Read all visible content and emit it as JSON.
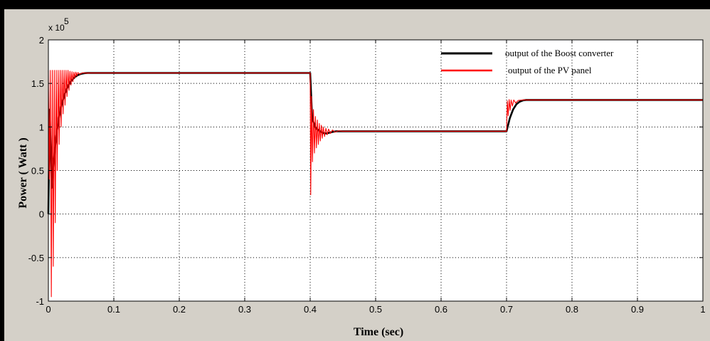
{
  "chart_data": {
    "type": "line",
    "title": "",
    "xlabel": "Time (sec)",
    "ylabel": "Power ( Watt )",
    "xlim": [
      0,
      1
    ],
    "ylim": [
      -100000,
      200000
    ],
    "y_exponent_label": "x 10",
    "y_exponent_power": "5",
    "xticks": [
      0,
      0.1,
      0.2,
      0.3,
      0.4,
      0.5,
      0.6,
      0.7,
      0.8,
      0.9,
      1
    ],
    "xtick_labels": [
      "0",
      "0.1",
      "0.2",
      "0.3",
      "0.4",
      "0.5",
      "0.6",
      "0.7",
      "0.8",
      "0.9",
      "1"
    ],
    "yticks": [
      -100000,
      -50000,
      0,
      50000,
      100000,
      150000,
      200000
    ],
    "ytick_labels": [
      "-1",
      "-0.5",
      "0",
      "0.5",
      "1",
      "1.5",
      "2"
    ],
    "grid": true,
    "legend_position": "top-right",
    "series": [
      {
        "name": "output of the Boost converter",
        "color": "#000000",
        "points": [
          [
            0,
            0
          ],
          [
            0.002,
            120000
          ],
          [
            0.005,
            30000
          ],
          [
            0.008,
            60000
          ],
          [
            0.012,
            90000
          ],
          [
            0.016,
            110000
          ],
          [
            0.02,
            125000
          ],
          [
            0.025,
            138000
          ],
          [
            0.03,
            147000
          ],
          [
            0.035,
            153000
          ],
          [
            0.04,
            157000
          ],
          [
            0.045,
            159500
          ],
          [
            0.05,
            161000
          ],
          [
            0.055,
            161700
          ],
          [
            0.06,
            162000
          ],
          [
            0.2,
            162000
          ],
          [
            0.3,
            162000
          ],
          [
            0.398,
            162000
          ],
          [
            0.4,
            162000
          ],
          [
            0.403,
            110000
          ],
          [
            0.408,
            99000
          ],
          [
            0.415,
            95000
          ],
          [
            0.42,
            93000
          ],
          [
            0.425,
            92500
          ],
          [
            0.43,
            93500
          ],
          [
            0.435,
            94500
          ],
          [
            0.44,
            95000
          ],
          [
            0.5,
            95000
          ],
          [
            0.6,
            95000
          ],
          [
            0.698,
            95000
          ],
          [
            0.7,
            95000
          ],
          [
            0.705,
            110000
          ],
          [
            0.71,
            120000
          ],
          [
            0.715,
            126000
          ],
          [
            0.72,
            129000
          ],
          [
            0.725,
            130500
          ],
          [
            0.73,
            131000
          ],
          [
            0.8,
            131000
          ],
          [
            0.9,
            131000
          ],
          [
            1.0,
            131000
          ]
        ]
      },
      {
        "name": "output of the PV panel",
        "color": "#ff0000",
        "points": [
          [
            0,
            165000
          ],
          [
            0.0015,
            40000
          ],
          [
            0.003,
            165000
          ],
          [
            0.0045,
            -95000
          ],
          [
            0.006,
            165000
          ],
          [
            0.0075,
            -60000
          ],
          [
            0.009,
            165000
          ],
          [
            0.0105,
            -10000
          ],
          [
            0.012,
            165000
          ],
          [
            0.0135,
            50000
          ],
          [
            0.015,
            165000
          ],
          [
            0.0165,
            80000
          ],
          [
            0.018,
            165000
          ],
          [
            0.0195,
            100000
          ],
          [
            0.021,
            165000
          ],
          [
            0.0225,
            115000
          ],
          [
            0.024,
            165000
          ],
          [
            0.0255,
            125000
          ],
          [
            0.027,
            165000
          ],
          [
            0.0285,
            135000
          ],
          [
            0.03,
            165000
          ],
          [
            0.0315,
            142000
          ],
          [
            0.033,
            164000
          ],
          [
            0.0345,
            148000
          ],
          [
            0.036,
            163500
          ],
          [
            0.0375,
            152000
          ],
          [
            0.039,
            163000
          ],
          [
            0.0405,
            156000
          ],
          [
            0.042,
            163000
          ],
          [
            0.0435,
            158500
          ],
          [
            0.045,
            162500
          ],
          [
            0.048,
            160500
          ],
          [
            0.052,
            162200
          ],
          [
            0.058,
            161800
          ],
          [
            0.065,
            162000
          ],
          [
            0.2,
            162000
          ],
          [
            0.3,
            162000
          ],
          [
            0.399,
            162000
          ],
          [
            0.4,
            162000
          ],
          [
            0.4008,
            22000
          ],
          [
            0.402,
            135000
          ],
          [
            0.4035,
            60000
          ],
          [
            0.405,
            120000
          ],
          [
            0.4065,
            70000
          ],
          [
            0.408,
            112000
          ],
          [
            0.4095,
            76000
          ],
          [
            0.411,
            108000
          ],
          [
            0.4125,
            80000
          ],
          [
            0.414,
            104000
          ],
          [
            0.4155,
            84000
          ],
          [
            0.417,
            102000
          ],
          [
            0.4185,
            87000
          ],
          [
            0.42,
            100000
          ],
          [
            0.422,
            89000
          ],
          [
            0.424,
            98500
          ],
          [
            0.426,
            91000
          ],
          [
            0.428,
            97500
          ],
          [
            0.431,
            92500
          ],
          [
            0.434,
            96500
          ],
          [
            0.438,
            94000
          ],
          [
            0.443,
            95500
          ],
          [
            0.45,
            95000
          ],
          [
            0.6,
            95000
          ],
          [
            0.698,
            95000
          ],
          [
            0.7,
            95000
          ],
          [
            0.7012,
            130000
          ],
          [
            0.7025,
            113000
          ],
          [
            0.704,
            131500
          ],
          [
            0.7055,
            119000
          ],
          [
            0.707,
            131000
          ],
          [
            0.709,
            124000
          ],
          [
            0.711,
            131000
          ],
          [
            0.714,
            127500
          ],
          [
            0.718,
            130500
          ],
          [
            0.725,
            131000
          ],
          [
            0.8,
            131000
          ],
          [
            0.9,
            131000
          ],
          [
            1.0,
            131000
          ]
        ]
      }
    ]
  }
}
